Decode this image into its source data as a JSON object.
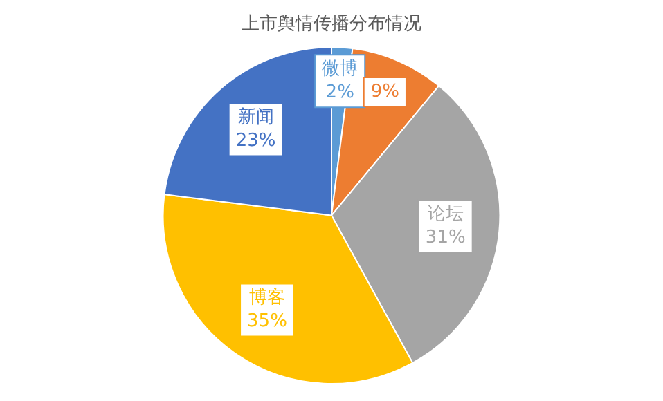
{
  "chart_data": {
    "type": "pie",
    "title": "上市舆情传播分布情况",
    "categories": [
      "微博",
      null,
      "论坛",
      "博客",
      "新闻"
    ],
    "values": [
      2,
      9,
      31,
      35,
      23
    ],
    "value_labels": [
      "2%",
      "9%",
      "31%",
      "35%",
      "23%"
    ],
    "colors": [
      "#5b9bd5",
      "#ed7d31",
      "#a5a5a5",
      "#ffc000",
      "#4472c4"
    ],
    "legend": false
  }
}
